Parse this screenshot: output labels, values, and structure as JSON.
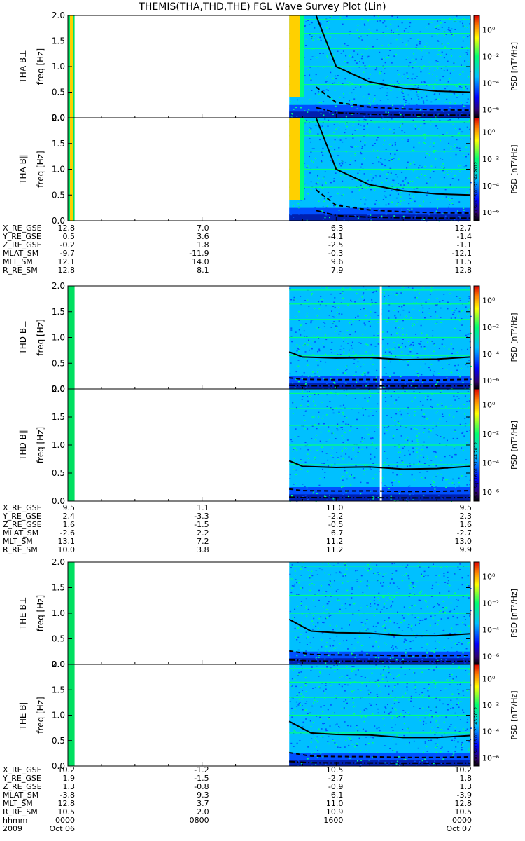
{
  "title": "THEMIS(THA,THD,THE) FGL Wave Survey Plot (Lin)",
  "colorbar": {
    "label": "PSD [nT²/Hz]",
    "ticks": [
      "10⁰",
      "10⁻²",
      "10⁻⁴",
      "10⁻⁶"
    ],
    "stamps": [
      "Sun Sep 16 01:21:44 2012",
      "Sun Sep 16 01:21:44 2012",
      "Sun Sep 16 01:21:43 2012"
    ]
  },
  "colors": {
    "background": "#00c0ff",
    "noise": "#0050ff",
    "green": "#00ff80",
    "yellow": "#ffd000",
    "black": "#000000"
  },
  "chart_data": [
    {
      "type": "heatmap",
      "probe": "THA",
      "component": "B⊥",
      "ylabel": "THA B⊥\nfreq [Hz]",
      "ylim": [
        0,
        2.0
      ],
      "yticks": [
        "0.0",
        "0.5",
        "1.0",
        "1.5",
        "2.0"
      ],
      "data_start_hours": 13.2,
      "early_strip_hours": [
        0,
        0.4
      ],
      "fc_curve": [
        [
          14.8,
          2.0
        ],
        [
          16.0,
          1.0
        ],
        [
          18.0,
          0.7
        ],
        [
          20.0,
          0.58
        ],
        [
          22.0,
          0.52
        ],
        [
          24.0,
          0.5
        ]
      ]
    },
    {
      "type": "heatmap",
      "probe": "THA",
      "component": "B∥",
      "ylabel": "THA B∥\nfreq [Hz]",
      "ylim": [
        0,
        2.0
      ],
      "yticks": [
        "0.0",
        "0.5",
        "1.0",
        "1.5",
        "2.0"
      ],
      "data_start_hours": 13.2,
      "early_strip_hours": [
        0,
        0.4
      ],
      "fc_curve": [
        [
          14.8,
          2.0
        ],
        [
          16.0,
          1.0
        ],
        [
          18.0,
          0.7
        ],
        [
          20.0,
          0.58
        ],
        [
          22.0,
          0.52
        ],
        [
          24.0,
          0.5
        ]
      ]
    },
    {
      "type": "heatmap",
      "probe": "THD",
      "component": "B⊥",
      "ylabel": "THD B⊥\nfreq [Hz]",
      "ylim": [
        0,
        2.0
      ],
      "yticks": [
        "0.0",
        "0.5",
        "1.0",
        "1.5",
        "2.0"
      ],
      "data_start_hours": 13.2,
      "early_strip_hours": [
        0,
        0.4
      ],
      "gap_hours": 18.6,
      "fc_curve": [
        [
          13.2,
          0.72
        ],
        [
          14.0,
          0.62
        ],
        [
          16.0,
          0.6
        ],
        [
          18.0,
          0.61
        ],
        [
          20.0,
          0.57
        ],
        [
          22.0,
          0.58
        ],
        [
          24.0,
          0.62
        ]
      ]
    },
    {
      "type": "heatmap",
      "probe": "THD",
      "component": "B∥",
      "ylabel": "THD B∥\nfreq [Hz]",
      "ylim": [
        0,
        2.0
      ],
      "yticks": [
        "0.0",
        "0.5",
        "1.0",
        "1.5",
        "2.0"
      ],
      "data_start_hours": 13.2,
      "early_strip_hours": [
        0,
        0.4
      ],
      "gap_hours": 18.6,
      "fc_curve": [
        [
          13.2,
          0.72
        ],
        [
          14.0,
          0.62
        ],
        [
          16.0,
          0.6
        ],
        [
          18.0,
          0.61
        ],
        [
          20.0,
          0.57
        ],
        [
          22.0,
          0.58
        ],
        [
          24.0,
          0.62
        ]
      ]
    },
    {
      "type": "heatmap",
      "probe": "THE",
      "component": "B⊥",
      "ylabel": "THE B⊥\nfreq [Hz]",
      "ylim": [
        0,
        2.0
      ],
      "yticks": [
        "0.0",
        "0.5",
        "1.0",
        "1.5",
        "2.0"
      ],
      "data_start_hours": 13.2,
      "early_strip_hours": [
        0,
        0.4
      ],
      "fc_curve": [
        [
          13.2,
          0.88
        ],
        [
          14.5,
          0.65
        ],
        [
          16.0,
          0.62
        ],
        [
          18.0,
          0.61
        ],
        [
          20.0,
          0.56
        ],
        [
          22.0,
          0.56
        ],
        [
          24.0,
          0.6
        ]
      ]
    },
    {
      "type": "heatmap",
      "probe": "THE",
      "component": "B∥",
      "ylabel": "THE B∥\nfreq [Hz]",
      "ylim": [
        0,
        2.0
      ],
      "yticks": [
        "0.0",
        "0.5",
        "1.0",
        "1.5",
        "2.0"
      ],
      "data_start_hours": 13.2,
      "early_strip_hours": [
        0,
        0.4
      ],
      "fc_curve": [
        [
          13.2,
          0.88
        ],
        [
          14.5,
          0.65
        ],
        [
          16.0,
          0.62
        ],
        [
          18.0,
          0.61
        ],
        [
          20.0,
          0.56
        ],
        [
          22.0,
          0.56
        ],
        [
          24.0,
          0.6
        ]
      ]
    }
  ],
  "ephemeris": [
    {
      "probe": "THA",
      "rows": [
        {
          "label": "X_RE_GSE",
          "values": [
            "12.8",
            "7.0",
            "6.3",
            "12.7"
          ]
        },
        {
          "label": "Y_RE_GSE",
          "values": [
            "0.5",
            "3.6",
            "-4.1",
            "-1.4"
          ]
        },
        {
          "label": "Z_RE_GSE",
          "values": [
            "-0.2",
            "1.8",
            "-2.5",
            "-1.1"
          ]
        },
        {
          "label": "MLAT_SM",
          "values": [
            "-9.7",
            "-11.9",
            "-0.3",
            "-12.1"
          ]
        },
        {
          "label": "MLT_SM",
          "values": [
            "12.1",
            "14.0",
            "9.6",
            "11.5"
          ]
        },
        {
          "label": "R_RE_SM",
          "values": [
            "12.8",
            "8.1",
            "7.9",
            "12.8"
          ]
        }
      ]
    },
    {
      "probe": "THD",
      "rows": [
        {
          "label": "X_RE_GSE",
          "values": [
            "9.5",
            "1.1",
            "11.0",
            "9.5"
          ]
        },
        {
          "label": "Y_RE_GSE",
          "values": [
            "2.4",
            "-3.3",
            "-2.2",
            "2.3"
          ]
        },
        {
          "label": "Z_RE_GSE",
          "values": [
            "1.6",
            "-1.5",
            "-0.5",
            "1.6"
          ]
        },
        {
          "label": "MLAT_SM",
          "values": [
            "-2.6",
            "2.2",
            "6.7",
            "-2.7"
          ]
        },
        {
          "label": "MLT_SM",
          "values": [
            "13.1",
            "7.2",
            "11.2",
            "13.0"
          ]
        },
        {
          "label": "R_RE_SM",
          "values": [
            "10.0",
            "3.8",
            "11.2",
            "9.9"
          ]
        }
      ]
    },
    {
      "probe": "THE",
      "rows": [
        {
          "label": "X_RE_GSE",
          "values": [
            "10.2",
            "-1.2",
            "10.5",
            "10.2"
          ]
        },
        {
          "label": "Y_RE_GSE",
          "values": [
            "1.9",
            "-1.5",
            "-2.7",
            "1.8"
          ]
        },
        {
          "label": "Z_RE_GSE",
          "values": [
            "1.3",
            "-0.8",
            "-0.9",
            "1.3"
          ]
        },
        {
          "label": "MLAT_SM",
          "values": [
            "-3.8",
            "9.3",
            "6.1",
            "-3.9"
          ]
        },
        {
          "label": "MLT_SM",
          "values": [
            "12.8",
            "3.7",
            "11.0",
            "12.8"
          ]
        },
        {
          "label": "R_RE_SM",
          "values": [
            "10.5",
            "2.0",
            "10.9",
            "10.5"
          ]
        },
        {
          "label": "hhmm",
          "values": [
            "0000",
            "0800",
            "1600",
            "0000"
          ]
        },
        {
          "label": "2009",
          "values": [
            "Oct 06",
            "",
            "",
            "Oct 07"
          ]
        }
      ]
    }
  ]
}
